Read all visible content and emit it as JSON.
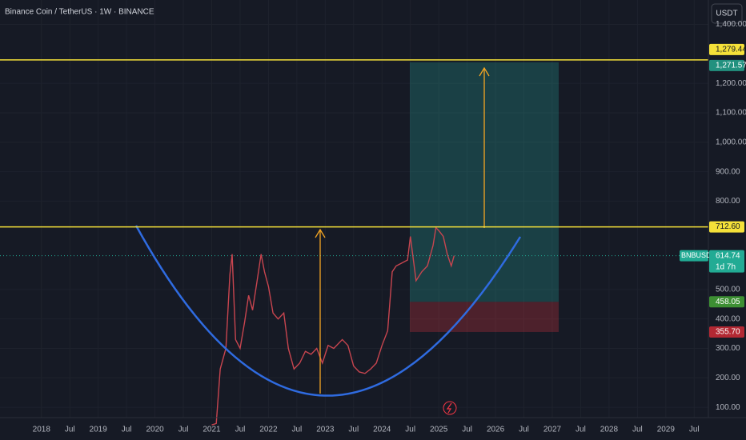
{
  "chart_data": {
    "type": "line",
    "title": "Binance Coin / TetherUS · 1W · BINANCE",
    "currency": "USDT",
    "x": [
      2021.0,
      2021.08,
      2021.15,
      2021.25,
      2021.32,
      2021.36,
      2021.42,
      2021.5,
      2021.58,
      2021.65,
      2021.72,
      2021.8,
      2021.87,
      2021.93,
      2022.0,
      2022.08,
      2022.17,
      2022.27,
      2022.35,
      2022.45,
      2022.55,
      2022.65,
      2022.75,
      2022.85,
      2022.95,
      2023.05,
      2023.15,
      2023.3,
      2023.4,
      2023.5,
      2023.6,
      2023.7,
      2023.8,
      2023.9,
      2024.0,
      2024.1,
      2024.18,
      2024.25,
      2024.35,
      2024.45,
      2024.5,
      2024.6,
      2024.7,
      2024.8,
      2024.9,
      2024.95,
      2025.0,
      2025.08,
      2025.15,
      2025.22,
      2025.27
    ],
    "series": [
      {
        "name": "BNBUSDT",
        "color": "#c8454f",
        "values": [
          40,
          45,
          230,
          300,
          550,
          620,
          330,
          300,
          390,
          480,
          430,
          530,
          620,
          560,
          510,
          420,
          400,
          420,
          300,
          230,
          250,
          290,
          280,
          300,
          250,
          310,
          300,
          330,
          310,
          240,
          220,
          215,
          230,
          250,
          310,
          360,
          560,
          580,
          590,
          600,
          680,
          530,
          560,
          580,
          650,
          710,
          700,
          680,
          620,
          580,
          614.74
        ]
      }
    ],
    "countdown": "1d 7h",
    "levels": [
      {
        "value": 1279.44,
        "label": "1,279.44"
      },
      {
        "value": 712.6,
        "label": "712.60"
      }
    ],
    "position": {
      "target": {
        "value": 1271.57,
        "label": "1,271.57"
      },
      "entry": {
        "value": 458.05,
        "label": "458.05"
      },
      "stop": {
        "value": 355.7,
        "label": "355.70"
      }
    },
    "xlim": [
      2017.27,
      2029.75
    ],
    "ylim": [
      65,
      1483
    ],
    "xticks": [
      2018,
      {
        "value": 2018.5,
        "label": "Jul"
      },
      2019,
      {
        "value": 2019.5,
        "label": "Jul"
      },
      2020,
      {
        "value": 2020.5,
        "label": "Jul"
      },
      2021,
      {
        "value": 2021.5,
        "label": "Jul"
      },
      2022,
      {
        "value": 2022.5,
        "label": "Jul"
      },
      2023,
      {
        "value": 2023.5,
        "label": "Jul"
      },
      2024,
      {
        "value": 2024.5,
        "label": "Jul"
      },
      2025,
      {
        "value": 2025.5,
        "label": "Jul"
      },
      2026,
      {
        "value": 2026.5,
        "label": "Jul"
      },
      2027,
      {
        "value": 2027.5,
        "label": "Jul"
      },
      2028,
      {
        "value": 2028.5,
        "label": "Jul"
      },
      2029,
      {
        "value": 2029.5,
        "label": "Jul"
      }
    ],
    "yticks": [
      {
        "value": 100,
        "label": "100.00"
      },
      {
        "value": 200,
        "label": "200.00"
      },
      {
        "value": 300,
        "label": "300.00"
      },
      {
        "value": 400,
        "label": "400.00"
      },
      {
        "value": 500,
        "label": "500.00"
      },
      {
        "value": 800,
        "label": "800.00"
      },
      {
        "value": 900,
        "label": "900.00"
      },
      {
        "value": 1000,
        "label": "1,000.00"
      },
      {
        "value": 1100,
        "label": "1,100.00"
      },
      {
        "value": 1200,
        "label": "1,200.00"
      },
      {
        "value": 1400,
        "label": "1,400.00"
      }
    ],
    "grid": true
  }
}
